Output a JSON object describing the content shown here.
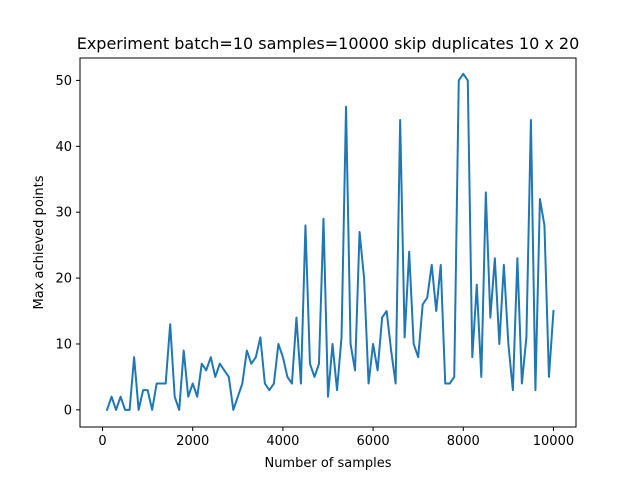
{
  "chart_data": {
    "type": "line",
    "title": "Experiment batch=10 samples=10000 skip duplicates 10 x 20",
    "xlabel": "Number of samples",
    "ylabel": "Max achieved points",
    "xlim": [
      -500,
      10500
    ],
    "ylim": [
      -2.6,
      53.4
    ],
    "xticks": [
      0,
      2000,
      4000,
      6000,
      8000,
      10000
    ],
    "yticks": [
      0,
      10,
      20,
      30,
      40,
      50
    ],
    "grid": false,
    "series": [
      {
        "color": "#1f77b4",
        "x": [
          100,
          200,
          300,
          400,
          500,
          600,
          700,
          800,
          900,
          1000,
          1100,
          1200,
          1300,
          1400,
          1500,
          1600,
          1700,
          1800,
          1900,
          2000,
          2100,
          2200,
          2300,
          2400,
          2500,
          2600,
          2700,
          2800,
          2900,
          3000,
          3100,
          3200,
          3300,
          3400,
          3500,
          3600,
          3700,
          3800,
          3900,
          4000,
          4100,
          4200,
          4300,
          4400,
          4500,
          4600,
          4700,
          4800,
          4900,
          5000,
          5100,
          5200,
          5300,
          5400,
          5500,
          5600,
          5700,
          5800,
          5900,
          6000,
          6100,
          6200,
          6300,
          6400,
          6500,
          6600,
          6700,
          6800,
          6900,
          7000,
          7100,
          7200,
          7300,
          7400,
          7500,
          7600,
          7700,
          7800,
          7900,
          8000,
          8100,
          8200,
          8300,
          8400,
          8500,
          8600,
          8700,
          8800,
          8900,
          9000,
          9100,
          9200,
          9300,
          9400,
          9500,
          9600,
          9700,
          9800,
          9900,
          10000
        ],
        "y": [
          0,
          2,
          0,
          2,
          0,
          0,
          8,
          0,
          3,
          3,
          0,
          4,
          4,
          4,
          13,
          2,
          0,
          9,
          2,
          4,
          2,
          7,
          6,
          8,
          5,
          7,
          6,
          5,
          0,
          2,
          4,
          9,
          7,
          8,
          11,
          4,
          3,
          4,
          10,
          8,
          5,
          4,
          14,
          4,
          28,
          7,
          5,
          7,
          29,
          2,
          10,
          3,
          11,
          46,
          10,
          6,
          27,
          20,
          4,
          10,
          6,
          14,
          15,
          9,
          4,
          44,
          11,
          24,
          10,
          8,
          16,
          17,
          22,
          15,
          22,
          4,
          4,
          5,
          50,
          51,
          50,
          8,
          19,
          5,
          33,
          14,
          23,
          10,
          22,
          10,
          3,
          23,
          4,
          11,
          44,
          3,
          32,
          28,
          5,
          15
        ]
      }
    ]
  }
}
